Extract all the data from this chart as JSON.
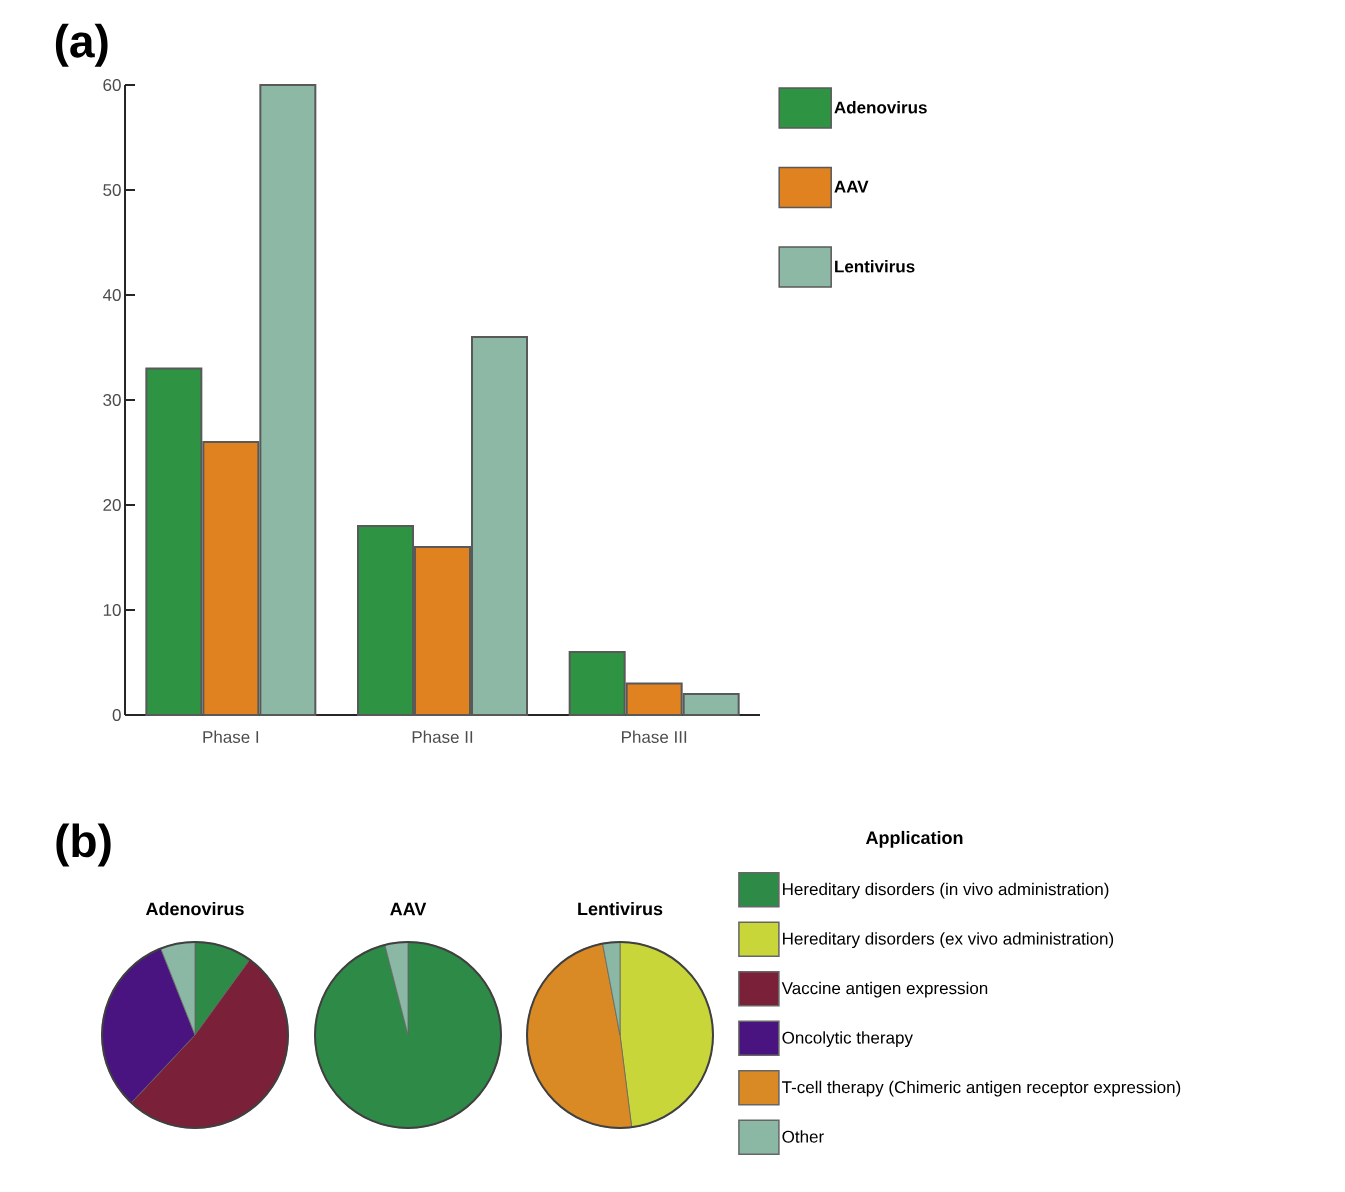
{
  "chart_data": [
    {
      "type": "bar",
      "categories": [
        "Phase I",
        "Phase II",
        "Phase III"
      ],
      "ylim": [
        0,
        60
      ],
      "yticks": [
        0,
        10,
        20,
        30,
        40,
        50,
        60
      ],
      "legend": "top right",
      "annotations": [
        "(a)"
      ],
      "series": [
        {
          "name": "Adenovirus",
          "color": "#2e9444",
          "values": [
            33,
            18,
            6
          ]
        },
        {
          "name": "AAV",
          "color": "#e0821f",
          "values": [
            26,
            16,
            3
          ]
        },
        {
          "name": "Lentivirus",
          "color": "#8db8a6",
          "values": [
            60,
            36,
            2
          ]
        }
      ]
    },
    {
      "type": "pie",
      "title": "Adenovirus",
      "annotations": [
        "(b)"
      ],
      "categories": [
        null,
        null,
        null,
        null,
        null,
        null
      ],
      "values": [
        10,
        0,
        52,
        32,
        0,
        6
      ],
      "colors": [
        "#2e8b47",
        "#c8d63a",
        "#7a2038",
        "#4a1480",
        "#d98a25",
        "#8ab8a4"
      ]
    },
    {
      "type": "pie",
      "title": "AAV",
      "categories": [
        null,
        null,
        null,
        null,
        null,
        null
      ],
      "values": [
        96,
        0,
        0,
        0,
        0,
        4
      ],
      "colors": [
        "#2e8b47",
        "#c8d63a",
        "#7a2038",
        "#4a1480",
        "#d98a25",
        "#8ab8a4"
      ]
    },
    {
      "type": "pie",
      "title": "Lentivirus",
      "legend": "right",
      "legend_title": "Application",
      "categories": [
        "Hereditary disorders (in vivo administration)",
        "Hereditary disorders (ex vivo administration)",
        "Vaccine antigen expression",
        "Oncolytic therapy",
        "T-cell therapy (Chimeric antigen receptor expression)",
        "Other"
      ],
      "values": [
        0,
        48,
        0,
        0,
        49,
        3
      ],
      "colors": [
        "#2e8b47",
        "#c8d63a",
        "#7a2038",
        "#4a1480",
        "#d98a25",
        "#8ab8a4"
      ]
    }
  ]
}
